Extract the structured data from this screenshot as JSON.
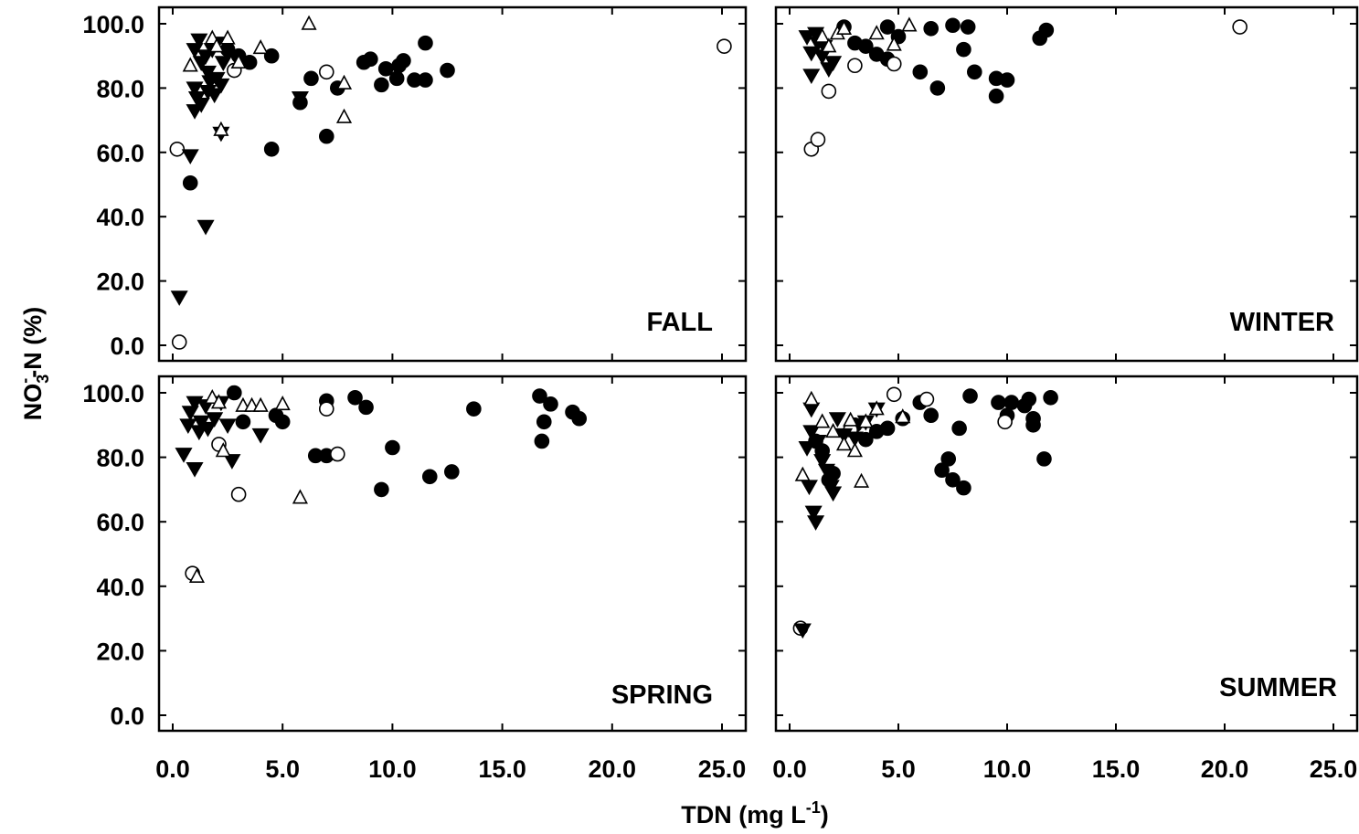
{
  "chart_data": {
    "type": "scatter",
    "xlabel": {
      "text": "TDN (mg L",
      "sup": "-1",
      "close": ")"
    },
    "ylabel": {
      "main": "NO",
      "sub": "3",
      "sup": "-",
      "rest": "-N (%)"
    },
    "xlim": [
      0,
      25
    ],
    "ylim": [
      0,
      100
    ],
    "xticks": [
      "0.0",
      "5.0",
      "10.0",
      "15.0",
      "20.0",
      "25.0"
    ],
    "yticks": [
      "0.0",
      "20.0",
      "40.0",
      "60.0",
      "80.0",
      "100.0"
    ],
    "grid": false,
    "panels": [
      {
        "label": "FALL",
        "series": [
          {
            "marker": "filled-circle",
            "points": [
              [
                0.8,
                50.5
              ],
              [
                2.5,
                92
              ],
              [
                3,
                90
              ],
              [
                3.5,
                88
              ],
              [
                4.5,
                90
              ],
              [
                4.5,
                61
              ],
              [
                5.8,
                75.5
              ],
              [
                6.3,
                83
              ],
              [
                7,
                65
              ],
              [
                7.5,
                80
              ],
              [
                8.7,
                88
              ],
              [
                9,
                89
              ],
              [
                9.5,
                81
              ],
              [
                9.7,
                86
              ],
              [
                10.2,
                83
              ],
              [
                10.3,
                87
              ],
              [
                10.5,
                88.5
              ],
              [
                11,
                82.5
              ],
              [
                11.5,
                82.5
              ],
              [
                11.5,
                94
              ],
              [
                12.5,
                85.5
              ]
            ]
          },
          {
            "marker": "open-circle",
            "points": [
              [
                0.2,
                61
              ],
              [
                0.3,
                1
              ],
              [
                2.8,
                85.5
              ],
              [
                7,
                85
              ],
              [
                25.1,
                93
              ]
            ]
          },
          {
            "marker": "filled-triangle-down",
            "points": [
              [
                0.3,
                15
              ],
              [
                0.8,
                59
              ],
              [
                1.5,
                37
              ],
              [
                1,
                92
              ],
              [
                1.2,
                95
              ],
              [
                1.3,
                88
              ],
              [
                1.5,
                90
              ],
              [
                1.6,
                85
              ],
              [
                1.7,
                82
              ],
              [
                1,
                80
              ],
              [
                1.1,
                77
              ],
              [
                1,
                73
              ],
              [
                1.3,
                75
              ],
              [
                1.6,
                79
              ],
              [
                1.9,
                78
              ],
              [
                2,
                83
              ],
              [
                2.2,
                81
              ],
              [
                2.3,
                88
              ],
              [
                1.8,
                92
              ],
              [
                2,
                94
              ],
              [
                5.8,
                77
              ],
              [
                2.2,
                66
              ]
            ]
          },
          {
            "marker": "open-triangle-up",
            "points": [
              [
                0.8,
                87
              ],
              [
                1.8,
                95.5
              ],
              [
                2,
                93
              ],
              [
                2.5,
                95.5
              ],
              [
                3,
                88
              ],
              [
                4,
                92.5
              ],
              [
                2.2,
                67
              ],
              [
                6.2,
                100
              ],
              [
                7.8,
                81.5
              ],
              [
                7.8,
                71
              ]
            ]
          }
        ]
      },
      {
        "label": "WINTER",
        "series": [
          {
            "marker": "filled-circle",
            "points": [
              [
                2.5,
                99
              ],
              [
                3,
                94
              ],
              [
                3.5,
                93
              ],
              [
                4,
                90.5
              ],
              [
                4.5,
                89
              ],
              [
                4.5,
                99
              ],
              [
                5,
                96
              ],
              [
                6,
                85
              ],
              [
                6.5,
                98.5
              ],
              [
                6.8,
                80
              ],
              [
                7.5,
                99.5
              ],
              [
                8,
                92
              ],
              [
                8.2,
                99
              ],
              [
                8.5,
                85
              ],
              [
                9.5,
                83
              ],
              [
                9.5,
                77.5
              ],
              [
                10,
                82.5
              ],
              [
                11.5,
                95.5
              ],
              [
                11.8,
                98
              ]
            ]
          },
          {
            "marker": "open-circle",
            "points": [
              [
                1,
                61
              ],
              [
                1.3,
                64
              ],
              [
                1.8,
                79
              ],
              [
                3,
                87
              ],
              [
                4.8,
                87.5
              ],
              [
                20.7,
                99
              ]
            ]
          },
          {
            "marker": "filled-triangle-down",
            "points": [
              [
                0.8,
                96
              ],
              [
                1,
                91
              ],
              [
                1,
                84
              ],
              [
                1.3,
                94
              ],
              [
                1.5,
                90
              ],
              [
                1.8,
                86
              ],
              [
                2,
                88
              ],
              [
                1.2,
                97
              ],
              [
                1.6,
                93
              ]
            ]
          },
          {
            "marker": "open-triangle-up",
            "points": [
              [
                1.5,
                96
              ],
              [
                1.8,
                93
              ],
              [
                2.2,
                97
              ],
              [
                2.5,
                98.5
              ],
              [
                4,
                97
              ],
              [
                4.8,
                93.5
              ],
              [
                5.5,
                99.5
              ]
            ]
          }
        ]
      },
      {
        "label": "SPRING",
        "series": [
          {
            "marker": "filled-circle",
            "points": [
              [
                2.8,
                100
              ],
              [
                3.2,
                91
              ],
              [
                4.7,
                93
              ],
              [
                5,
                91
              ],
              [
                6.5,
                80.5
              ],
              [
                7,
                97.5
              ],
              [
                7,
                80.5
              ],
              [
                8.3,
                98.5
              ],
              [
                8.8,
                95.5
              ],
              [
                9.5,
                70
              ],
              [
                10,
                83
              ],
              [
                11.7,
                74
              ],
              [
                12.7,
                75.5
              ],
              [
                13.7,
                95
              ],
              [
                16.7,
                99
              ],
              [
                16.8,
                85
              ],
              [
                16.9,
                91
              ],
              [
                17.2,
                96.5
              ],
              [
                18.2,
                94
              ],
              [
                18.5,
                92
              ]
            ]
          },
          {
            "marker": "open-circle",
            "points": [
              [
                0.9,
                44
              ],
              [
                2.1,
                84
              ],
              [
                3,
                68.5
              ],
              [
                7,
                95
              ],
              [
                7.5,
                81
              ]
            ]
          },
          {
            "marker": "filled-triangle-down",
            "points": [
              [
                0.5,
                81
              ],
              [
                0.7,
                90
              ],
              [
                0.8,
                94
              ],
              [
                1,
                97
              ],
              [
                1,
                76.5
              ],
              [
                1.2,
                88
              ],
              [
                1.3,
                91
              ],
              [
                1.5,
                96
              ],
              [
                1.6,
                89
              ],
              [
                1.9,
                92
              ],
              [
                2.2,
                97
              ],
              [
                2.5,
                90
              ],
              [
                2.7,
                79
              ],
              [
                4,
                87
              ]
            ]
          },
          {
            "marker": "open-triangle-up",
            "points": [
              [
                1.1,
                43
              ],
              [
                1.8,
                98.5
              ],
              [
                2.1,
                97
              ],
              [
                2.3,
                82
              ],
              [
                3.2,
                96
              ],
              [
                3.6,
                96
              ],
              [
                4,
                96
              ],
              [
                5,
                96.5
              ],
              [
                5.8,
                67.5
              ]
            ]
          }
        ]
      },
      {
        "label": "SUMMER",
        "series": [
          {
            "marker": "filled-circle",
            "points": [
              [
                1.2,
                85
              ],
              [
                1.5,
                82
              ],
              [
                1.8,
                73
              ],
              [
                2,
                75
              ],
              [
                3,
                90
              ],
              [
                3.5,
                85.5
              ],
              [
                4,
                88
              ],
              [
                4.5,
                89
              ],
              [
                5.2,
                92
              ],
              [
                6,
                97
              ],
              [
                6.5,
                93
              ],
              [
                7,
                76
              ],
              [
                7.3,
                79.5
              ],
              [
                7.5,
                73
              ],
              [
                7.8,
                89
              ],
              [
                8,
                70.5
              ],
              [
                8.3,
                99
              ],
              [
                9.6,
                97
              ],
              [
                10,
                93
              ],
              [
                10.2,
                97
              ],
              [
                10.8,
                96
              ],
              [
                11,
                98
              ],
              [
                11.2,
                92
              ],
              [
                11.2,
                90
              ],
              [
                11.7,
                79.5
              ],
              [
                12,
                98.5
              ]
            ]
          },
          {
            "marker": "open-circle",
            "points": [
              [
                0.5,
                27
              ],
              [
                2.8,
                88.5
              ],
              [
                4.8,
                99.5
              ],
              [
                6.3,
                98
              ],
              [
                9.9,
                91
              ]
            ]
          },
          {
            "marker": "filled-triangle-down",
            "points": [
              [
                0.6,
                26.5
              ],
              [
                0.8,
                83
              ],
              [
                0.9,
                71
              ],
              [
                1,
                95
              ],
              [
                1,
                88
              ],
              [
                1.2,
                60
              ],
              [
                1.1,
                63
              ],
              [
                1.3,
                85
              ],
              [
                1.5,
                79
              ],
              [
                1.7,
                76
              ],
              [
                1.9,
                71
              ],
              [
                2,
                69
              ],
              [
                2.2,
                92
              ],
              [
                2.5,
                87
              ],
              [
                3,
                86
              ],
              [
                3.5,
                91
              ],
              [
                4,
                95
              ]
            ]
          },
          {
            "marker": "open-triangle-up",
            "points": [
              [
                0.6,
                74.5
              ],
              [
                1,
                98
              ],
              [
                1.5,
                91
              ],
              [
                2,
                88
              ],
              [
                2.5,
                84
              ],
              [
                2.8,
                91.5
              ],
              [
                3,
                82
              ],
              [
                3.3,
                72.5
              ],
              [
                3.5,
                91
              ],
              [
                4,
                95
              ],
              [
                5.2,
                92.5
              ]
            ]
          }
        ]
      }
    ]
  }
}
